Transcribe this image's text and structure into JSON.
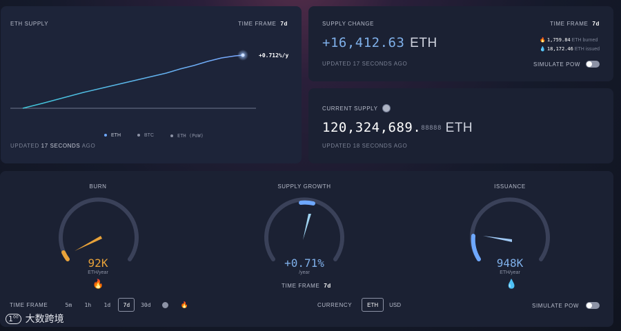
{
  "eth_supply": {
    "title": "ETH SUPPLY",
    "time_frame_label": "TIME FRAME",
    "time_frame_value": "7d",
    "change_label": "+0.712%/y",
    "legend": [
      {
        "label": "ETH",
        "color": "#6ea8ff"
      },
      {
        "label": "BTC",
        "color": "#8d93a6"
      },
      {
        "label": "ETH (PoW)",
        "color": "#8d93a6"
      }
    ],
    "updated_prefix": "UPDATED",
    "updated_value": "17 SECONDS",
    "updated_suffix": "AGO"
  },
  "supply_change": {
    "title": "SUPPLY CHANGE",
    "time_frame_label": "TIME FRAME",
    "time_frame_value": "7d",
    "value": "+16,412.63",
    "unit": "ETH",
    "burned_value": "1,759.84",
    "burned_label": "ETH burned",
    "issued_value": "18,172.46",
    "issued_label": "ETH issued",
    "updated": "UPDATED 17 SECONDS AGO",
    "simulate_label": "SIMULATE PoW"
  },
  "current_supply": {
    "title": "CURRENT SUPPLY",
    "value_main": "120,324,689.",
    "value_frac": "88888",
    "unit": "ETH",
    "updated": "UPDATED 18 SECONDS AGO"
  },
  "gauges": {
    "burn": {
      "title": "BURN",
      "value": "92K",
      "unit": "ETH/year",
      "level": 0.22,
      "color": "#e8a23a"
    },
    "growth": {
      "title": "SUPPLY GROWTH",
      "value": "+0.71%",
      "unit": "/year",
      "level": 0.55,
      "color": "#6ea8ff"
    },
    "issuance": {
      "title": "ISSUANCE",
      "value": "948K",
      "unit": "ETH/year",
      "level": 0.35,
      "color": "#6ea8ff"
    }
  },
  "controls": {
    "time_frame_label": "TIME FRAME",
    "time_frame_options": [
      "5m",
      "1h",
      "1d",
      "7d",
      "30d"
    ],
    "time_frame_active": "7d",
    "growth_time_frame_label": "TIME FRAME",
    "growth_time_frame_value": "7d",
    "currency_label": "CURRENCY",
    "currency_options": [
      "ETH",
      "USD"
    ],
    "currency_active": "ETH",
    "simulate_label": "SIMULATE PoW"
  },
  "watermark": "大数跨境",
  "colors": {
    "accent": "#6ea8ff",
    "burn": "#e8a23a",
    "panel": "#1b2133"
  },
  "icons": [
    "flame-icon",
    "droplet-icon",
    "pancake-icon",
    "toggle-icon"
  ]
}
